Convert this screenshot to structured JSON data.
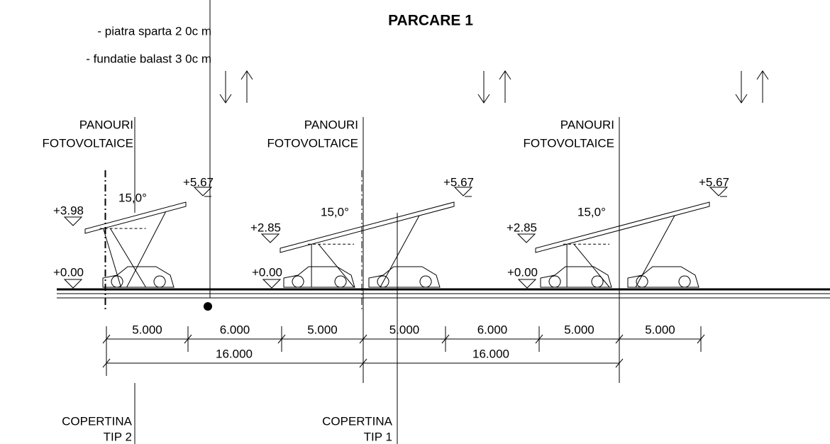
{
  "title": "PARCARE 1",
  "notes": [
    "- piatra sparta 2 0c m",
    "- fundatie balast 3 0c m"
  ],
  "units": [
    {
      "label": [
        "PANOURI",
        "FOTOVOLTAICE"
      ],
      "top_level": "+5.67",
      "low_level": "+3.98",
      "ground_level": "+0.00",
      "angle": "15,0°"
    },
    {
      "label": [
        "PANOURI",
        "FOTOVOLTAICE"
      ],
      "top_level": "+5.67",
      "low_level": "+2.85",
      "ground_level": "+0.00",
      "angle": "15,0°"
    },
    {
      "label": [
        "PANOURI",
        "FOTOVOLTAICE"
      ],
      "top_level": "+5.67",
      "low_level": "+2.85",
      "ground_level": "+0.00",
      "angle": "15,0°"
    }
  ],
  "dimensions": [
    "5.000",
    "6.000",
    "5.000",
    "5.000",
    "6.000",
    "5.000",
    "5.000"
  ],
  "totals": [
    "16.000",
    "16.000"
  ],
  "copertine": [
    [
      "COPERTINA",
      "TIP 2"
    ],
    [
      "COPERTINA",
      "TIP 1"
    ]
  ]
}
